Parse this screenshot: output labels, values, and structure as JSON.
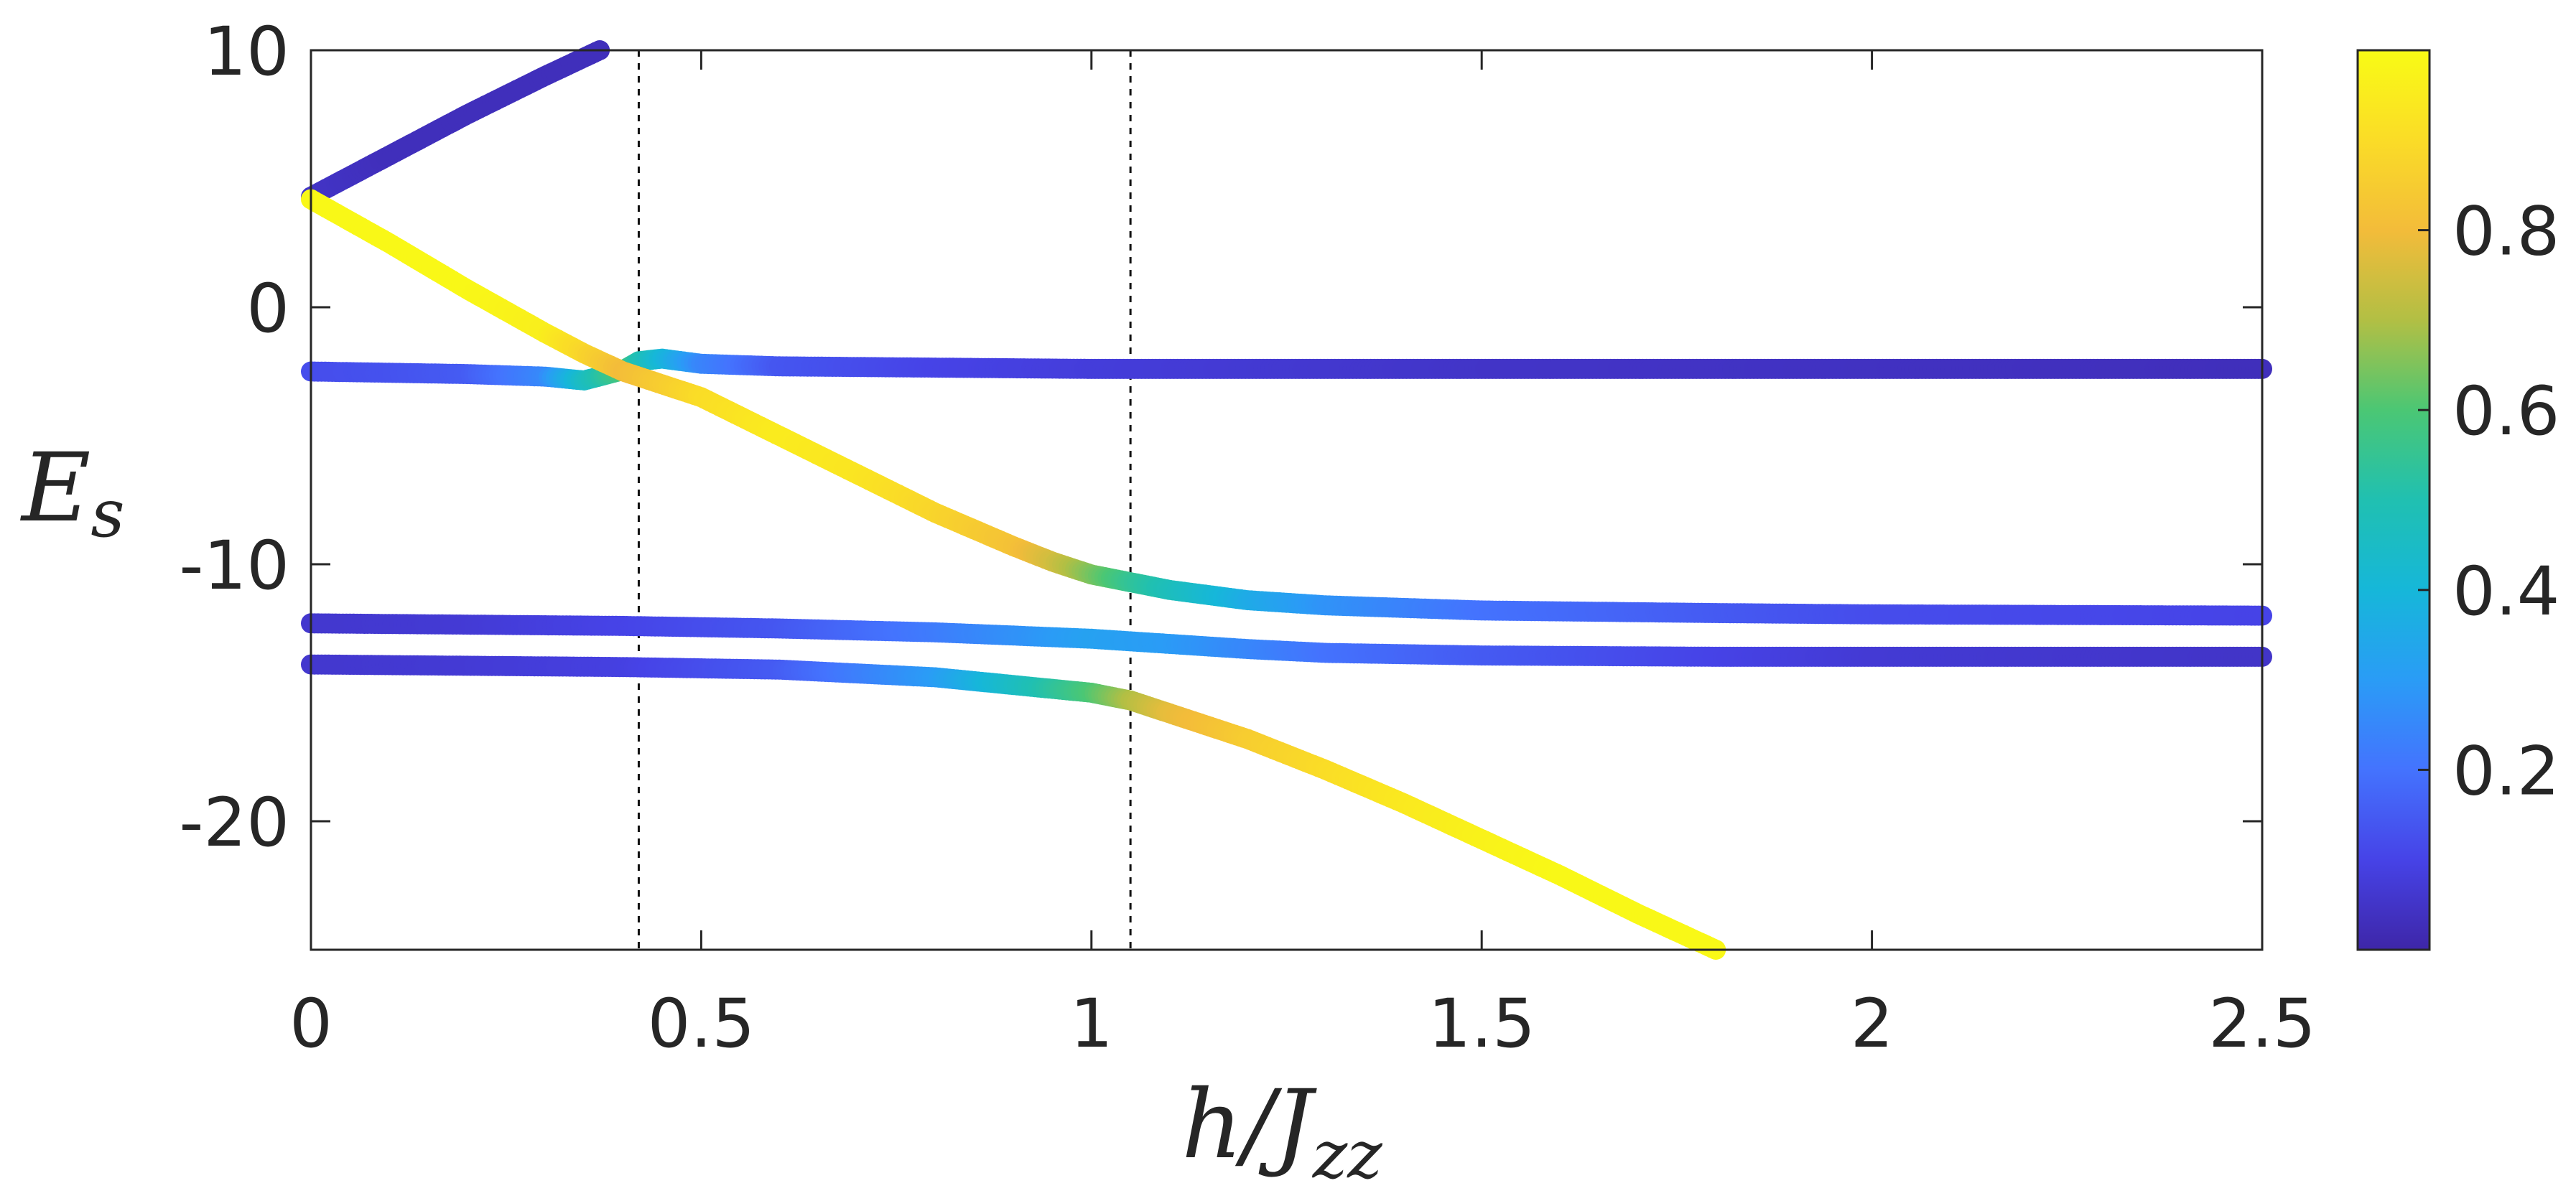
{
  "chart_data": {
    "type": "scatter",
    "xlabel": "h/J",
    "xlabel_sub": "zz",
    "ylabel": "E",
    "ylabel_sub": "s",
    "xlim": [
      0,
      2.5
    ],
    "ylim": [
      -25,
      10
    ],
    "xticks": [
      0,
      0.5,
      1,
      1.5,
      2,
      2.5
    ],
    "xtick_labels": [
      "0",
      "0.5",
      "1",
      "1.5",
      "2",
      "2.5"
    ],
    "yticks": [
      10,
      0,
      -10,
      -20
    ],
    "ytick_labels": [
      "10",
      "0",
      "-10",
      "-20"
    ],
    "vlines": [
      0.42,
      1.05
    ],
    "grid": false,
    "colorbar": {
      "range": [
        0,
        1
      ],
      "ticks": [
        0.2,
        0.4,
        0.6,
        0.8
      ],
      "tick_labels": [
        "0.2",
        "0.4",
        "0.6",
        "0.8"
      ],
      "colormap": "parula"
    },
    "series": [
      {
        "x": [
          0,
          0.1,
          0.2,
          0.3,
          0.37
        ],
        "y": [
          4.3,
          5.9,
          7.5,
          9.0,
          10.0
        ],
        "c": [
          0.05,
          0.03,
          0.03,
          0.03,
          0.03
        ]
      },
      {
        "x": [
          0,
          0.1,
          0.2,
          0.3,
          0.35,
          0.4,
          0.42,
          0.45,
          0.5,
          0.6,
          0.8,
          1.0,
          1.5,
          2.0,
          2.5
        ],
        "y": [
          -2.5,
          -2.55,
          -2.6,
          -2.7,
          -2.85,
          -2.45,
          -2.1,
          -2.0,
          -2.2,
          -2.3,
          -2.35,
          -2.4,
          -2.4,
          -2.4,
          -2.4
        ],
        "c": [
          0.12,
          0.13,
          0.15,
          0.25,
          0.45,
          0.6,
          0.5,
          0.4,
          0.25,
          0.14,
          0.1,
          0.08,
          0.05,
          0.04,
          0.03
        ]
      },
      {
        "x": [
          0,
          0.1,
          0.2,
          0.3,
          0.35,
          0.4,
          0.42,
          0.45,
          0.5,
          0.6,
          0.7,
          0.8,
          0.9,
          0.95,
          1.0,
          1.05,
          1.1,
          1.15,
          1.2,
          1.3,
          1.5,
          1.8,
          2.0,
          2.5
        ],
        "y": [
          4.2,
          2.5,
          0.7,
          -1.0,
          -1.8,
          -2.5,
          -2.7,
          -3.0,
          -3.5,
          -5.0,
          -6.5,
          -8.0,
          -9.3,
          -9.9,
          -10.4,
          -10.7,
          -11.0,
          -11.2,
          -11.4,
          -11.6,
          -11.8,
          -11.9,
          -11.95,
          -12.0
        ],
        "c": [
          0.99,
          0.99,
          0.99,
          0.96,
          0.88,
          0.8,
          0.82,
          0.85,
          0.9,
          0.95,
          0.93,
          0.88,
          0.82,
          0.75,
          0.65,
          0.55,
          0.48,
          0.42,
          0.36,
          0.28,
          0.2,
          0.15,
          0.12,
          0.1
        ]
      },
      {
        "x": [
          0,
          0.2,
          0.4,
          0.6,
          0.8,
          1.0,
          1.1,
          1.2,
          1.3,
          1.5,
          1.8,
          2.0,
          2.5
        ],
        "y": [
          -12.3,
          -12.35,
          -12.4,
          -12.5,
          -12.65,
          -12.9,
          -13.1,
          -13.3,
          -13.45,
          -13.55,
          -13.6,
          -13.6,
          -13.6
        ],
        "c": [
          0.06,
          0.07,
          0.1,
          0.14,
          0.22,
          0.32,
          0.3,
          0.25,
          0.2,
          0.15,
          0.1,
          0.07,
          0.05
        ]
      },
      {
        "x": [
          0,
          0.2,
          0.4,
          0.6,
          0.8,
          0.9,
          1.0,
          1.05,
          1.1,
          1.2,
          1.3,
          1.4,
          1.5,
          1.6,
          1.7,
          1.8
        ],
        "y": [
          -13.9,
          -13.95,
          -14.0,
          -14.1,
          -14.4,
          -14.7,
          -15.0,
          -15.3,
          -15.8,
          -16.8,
          -18.0,
          -19.3,
          -20.7,
          -22.1,
          -23.6,
          -25.0
        ],
        "c": [
          0.06,
          0.07,
          0.09,
          0.15,
          0.3,
          0.45,
          0.6,
          0.7,
          0.78,
          0.85,
          0.9,
          0.94,
          0.97,
          0.99,
          0.99,
          0.99
        ]
      }
    ]
  }
}
